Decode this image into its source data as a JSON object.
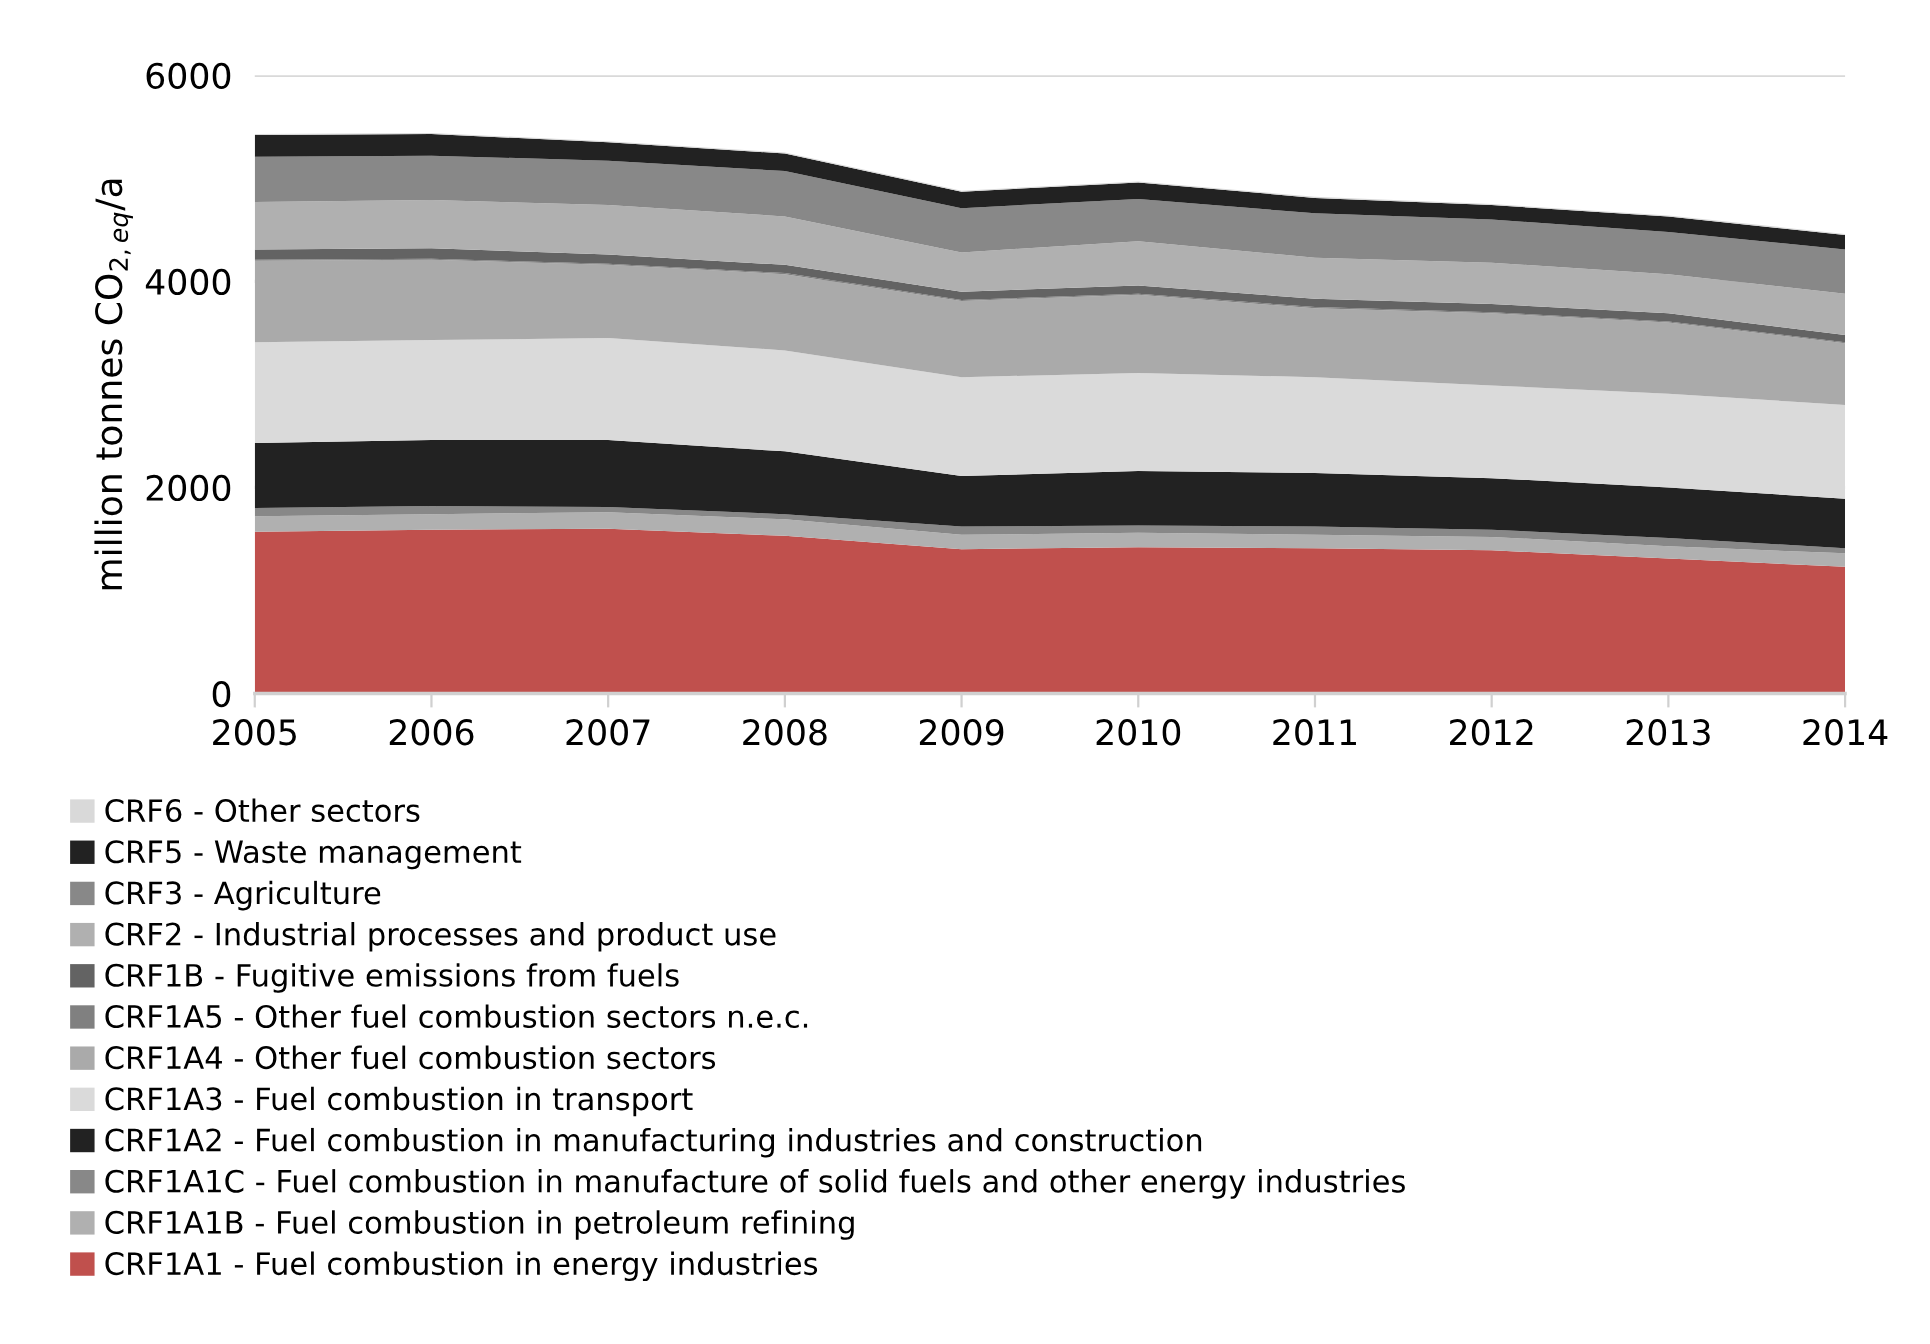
{
  "chart_data": {
    "type": "area",
    "stacked": true,
    "ylabel": "million tonnes CO$_{2,eq}$/a",
    "x": [
      2005,
      2006,
      2007,
      2008,
      2009,
      2010,
      2011,
      2012,
      2013,
      2014
    ],
    "xlim": [
      2005,
      2014
    ],
    "xticks": [
      2005,
      2006,
      2007,
      2008,
      2009,
      2010,
      2011,
      2012,
      2013,
      2014
    ],
    "ylim": [
      0,
      6000
    ],
    "yticks": [
      0,
      2000,
      4000,
      6000
    ],
    "grid": "y",
    "legend": "bottom",
    "series": [
      {
        "name": "CRF1A1 - Fuel combustion in energy industries",
        "color": "#c0504d",
        "values": [
          1570,
          1590,
          1600,
          1530,
          1400,
          1420,
          1410,
          1390,
          1310,
          1230
        ]
      },
      {
        "name": "CRF1A1B - Fuel combustion in petroleum refining",
        "color": "#b0b0b0",
        "values": [
          150,
          150,
          160,
          160,
          140,
          140,
          130,
          130,
          120,
          130
        ]
      },
      {
        "name": "CRF1A1C - Fuel combustion in manufacture of solid fuels and other energy industries",
        "color": "#888888",
        "values": [
          80,
          80,
          50,
          50,
          80,
          70,
          80,
          70,
          80,
          50
        ]
      },
      {
        "name": "CRF1A2 - Fuel combustion in manufacturing industries and construction",
        "color": "#222222",
        "values": [
          630,
          640,
          650,
          610,
          490,
          530,
          520,
          500,
          490,
          480
        ]
      },
      {
        "name": "CRF1A3 - Fuel combustion in transport",
        "color": "#dadada",
        "values": [
          980,
          970,
          990,
          980,
          960,
          950,
          930,
          900,
          910,
          910
        ]
      },
      {
        "name": "CRF1A4 - Other fuel combustion sectors",
        "color": "#aaaaaa",
        "values": [
          790,
          780,
          710,
          740,
          740,
          760,
          670,
          700,
          690,
          600
        ]
      },
      {
        "name": "CRF1A5 - Other fuel combustion sectors n.e.c.",
        "color": "#808080",
        "values": [
          10,
          10,
          10,
          10,
          10,
          10,
          10,
          10,
          10,
          10
        ]
      },
      {
        "name": "CRF1B - Fugitive emissions from fuels",
        "color": "#636363",
        "values": [
          100,
          100,
          90,
          80,
          80,
          80,
          80,
          80,
          80,
          70
        ]
      },
      {
        "name": "CRF2 - Industrial processes and product use",
        "color": "#b0b0b0",
        "values": [
          460,
          470,
          480,
          470,
          380,
          430,
          400,
          400,
          380,
          400
        ]
      },
      {
        "name": "CRF3 - Agriculture",
        "color": "#888888",
        "values": [
          440,
          430,
          430,
          440,
          430,
          410,
          430,
          420,
          410,
          430
        ]
      },
      {
        "name": "CRF5 - Waste management",
        "color": "#222222",
        "values": [
          210,
          210,
          180,
          170,
          160,
          160,
          150,
          140,
          150,
          140
        ]
      },
      {
        "name": "CRF6 - Other sectors",
        "color": "#d9d9d9",
        "values": [
          10,
          10,
          10,
          10,
          10,
          10,
          10,
          10,
          10,
          10
        ]
      }
    ]
  }
}
